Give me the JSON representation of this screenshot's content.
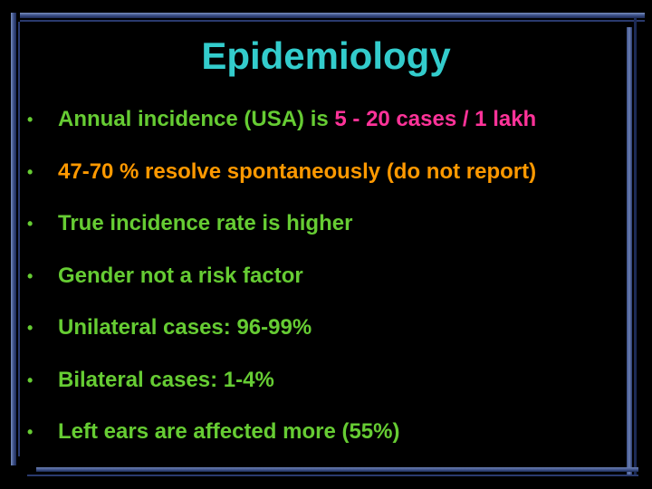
{
  "slide": {
    "title": "Epidemiology",
    "bullet_char": "•",
    "bullets": [
      {
        "segments": [
          {
            "text": "Annual incidence (USA) is ",
            "color": "#66cc33"
          },
          {
            "text": "5 - 20 cases / 1 lakh",
            "color": "#ff3399"
          }
        ]
      },
      {
        "segments": [
          {
            "text": "47-70 % resolve spontaneously (do not report)",
            "color": "#ff9900"
          }
        ]
      },
      {
        "segments": [
          {
            "text": "True incidence rate is higher",
            "color": "#66cc33"
          }
        ]
      },
      {
        "segments": [
          {
            "text": "Gender not a risk factor",
            "color": "#66cc33"
          }
        ]
      },
      {
        "segments": [
          {
            "text": "Unilateral cases: 96-99%",
            "color": "#66cc33"
          }
        ]
      },
      {
        "segments": [
          {
            "text": "Bilateral cases: 1-4%",
            "color": "#66cc33"
          }
        ]
      },
      {
        "segments": [
          {
            "text": "Left ears are affected more (55%)",
            "color": "#66cc33"
          }
        ]
      }
    ]
  },
  "colors": {
    "background": "#000000",
    "title": "#33cccc",
    "green": "#66cc33",
    "pink": "#ff3399",
    "orange": "#ff9900",
    "frame": "#3b4f86"
  }
}
